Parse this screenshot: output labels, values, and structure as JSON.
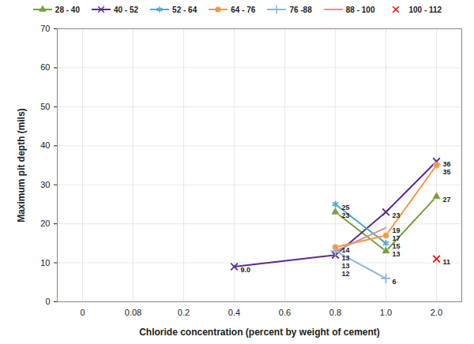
{
  "chart_data": {
    "type": "line",
    "x_label": "Chloride concentration (percent by weight of cement)",
    "y_label": "Maximum pit depth (mils)",
    "categories": [
      "0",
      "0.08",
      "0.2",
      "0.4",
      "0.6",
      "0.8",
      "1.0",
      "2.0"
    ],
    "ylim": [
      0,
      70
    ],
    "yticks": [
      0,
      10,
      20,
      30,
      40,
      50,
      60,
      70
    ],
    "grid": true,
    "legend": "top",
    "data_labels": true,
    "series": [
      {
        "name": "28 - 40",
        "color": "#77a03c",
        "marker": "triangle",
        "line_style": "solid",
        "x": [
          "0.8",
          "1.0",
          "2.0"
        ],
        "values": [
          23,
          13,
          27
        ]
      },
      {
        "name": "40 - 52",
        "color": "#5b2d8e",
        "marker": "times",
        "line_style": "solid",
        "x": [
          "0.4",
          "0.8",
          "1.0",
          "2.0"
        ],
        "values": [
          9.0,
          12,
          23,
          36
        ],
        "value_labels": [
          "9.0",
          "12",
          "23",
          "36"
        ]
      },
      {
        "name": "52 - 64",
        "color": "#4bacc6",
        "marker": "asterisk",
        "line_style": "solid",
        "x": [
          "0.8",
          "1.0"
        ],
        "values": [
          25,
          15
        ]
      },
      {
        "name": "64 - 76",
        "color": "#f79646",
        "marker": "circle",
        "line_style": "solid",
        "x": [
          "0.8",
          "1.0",
          "2.0"
        ],
        "values": [
          14,
          17,
          35
        ]
      },
      {
        "name": "76 -88",
        "color": "#8eb4e3",
        "marker": "plus",
        "line_style": "solid",
        "x": [
          "0.8",
          "1.0"
        ],
        "values": [
          13,
          6
        ]
      },
      {
        "name": "88 - 100",
        "color": "#d99594",
        "marker": "none",
        "line_style": "solid",
        "x": [
          "0.8",
          "1.0"
        ],
        "values": [
          13,
          19
        ]
      },
      {
        "name": "100 - 112",
        "color": "#ff0000",
        "marker": "times",
        "line_style": "none",
        "x": [
          "2.0"
        ],
        "values": [
          11
        ]
      }
    ]
  }
}
